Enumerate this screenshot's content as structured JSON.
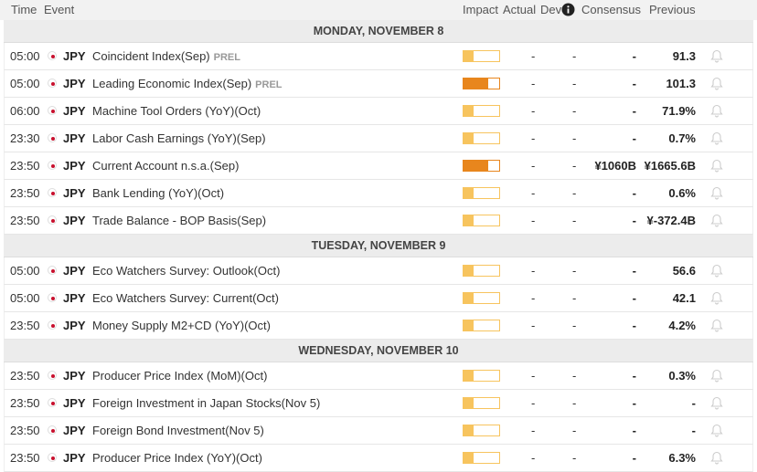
{
  "header": {
    "time": "Time",
    "event": "Event",
    "impact": "Impact",
    "actual": "Actual",
    "dev": "Dev",
    "consensus": "Consensus",
    "previous": "Previous"
  },
  "days": [
    {
      "title": "MONDAY, NOVEMBER 8",
      "rows": [
        {
          "time": "05:00",
          "currency": "JPY",
          "event": "Coincident Index(Sep)",
          "tag": "PREL",
          "impact": "low",
          "actual": "-",
          "dev": "-",
          "consensus": "-",
          "previous": "91.3"
        },
        {
          "time": "05:00",
          "currency": "JPY",
          "event": "Leading Economic Index(Sep)",
          "tag": "PREL",
          "impact": "medium",
          "actual": "-",
          "dev": "-",
          "consensus": "-",
          "previous": "101.3"
        },
        {
          "time": "06:00",
          "currency": "JPY",
          "event": "Machine Tool Orders (YoY)(Oct)",
          "impact": "low",
          "actual": "-",
          "dev": "-",
          "consensus": "-",
          "previous": "71.9%"
        },
        {
          "time": "23:30",
          "currency": "JPY",
          "event": "Labor Cash Earnings (YoY)(Sep)",
          "impact": "low",
          "actual": "-",
          "dev": "-",
          "consensus": "-",
          "previous": "0.7%"
        },
        {
          "time": "23:50",
          "currency": "JPY",
          "event": "Current Account n.s.a.(Sep)",
          "impact": "medium",
          "actual": "-",
          "dev": "-",
          "consensus": "¥1060B",
          "previous": "¥1665.6B"
        },
        {
          "time": "23:50",
          "currency": "JPY",
          "event": "Bank Lending (YoY)(Oct)",
          "impact": "low",
          "actual": "-",
          "dev": "-",
          "consensus": "-",
          "previous": "0.6%"
        },
        {
          "time": "23:50",
          "currency": "JPY",
          "event": "Trade Balance - BOP Basis(Sep)",
          "impact": "low",
          "actual": "-",
          "dev": "-",
          "consensus": "-",
          "previous": "¥-372.4B"
        }
      ]
    },
    {
      "title": "TUESDAY, NOVEMBER 9",
      "rows": [
        {
          "time": "05:00",
          "currency": "JPY",
          "event": "Eco Watchers Survey: Outlook(Oct)",
          "impact": "low",
          "actual": "-",
          "dev": "-",
          "consensus": "-",
          "previous": "56.6"
        },
        {
          "time": "05:00",
          "currency": "JPY",
          "event": "Eco Watchers Survey: Current(Oct)",
          "impact": "low",
          "actual": "-",
          "dev": "-",
          "consensus": "-",
          "previous": "42.1"
        },
        {
          "time": "23:50",
          "currency": "JPY",
          "event": "Money Supply M2+CD (YoY)(Oct)",
          "impact": "low",
          "actual": "-",
          "dev": "-",
          "consensus": "-",
          "previous": "4.2%"
        }
      ]
    },
    {
      "title": "WEDNESDAY, NOVEMBER 10",
      "rows": [
        {
          "time": "23:50",
          "currency": "JPY",
          "event": "Producer Price Index (MoM)(Oct)",
          "impact": "low",
          "actual": "-",
          "dev": "-",
          "consensus": "-",
          "previous": "0.3%"
        },
        {
          "time": "23:50",
          "currency": "JPY",
          "event": "Foreign Investment in Japan Stocks(Nov 5)",
          "impact": "low",
          "actual": "-",
          "dev": "-",
          "consensus": "-",
          "previous": "-"
        },
        {
          "time": "23:50",
          "currency": "JPY",
          "event": "Foreign Bond Investment(Nov 5)",
          "impact": "low",
          "actual": "-",
          "dev": "-",
          "consensus": "-",
          "previous": "-"
        },
        {
          "time": "23:50",
          "currency": "JPY",
          "event": "Producer Price Index (YoY)(Oct)",
          "impact": "low",
          "actual": "-",
          "dev": "-",
          "consensus": "-",
          "previous": "6.3%"
        }
      ]
    }
  ]
}
